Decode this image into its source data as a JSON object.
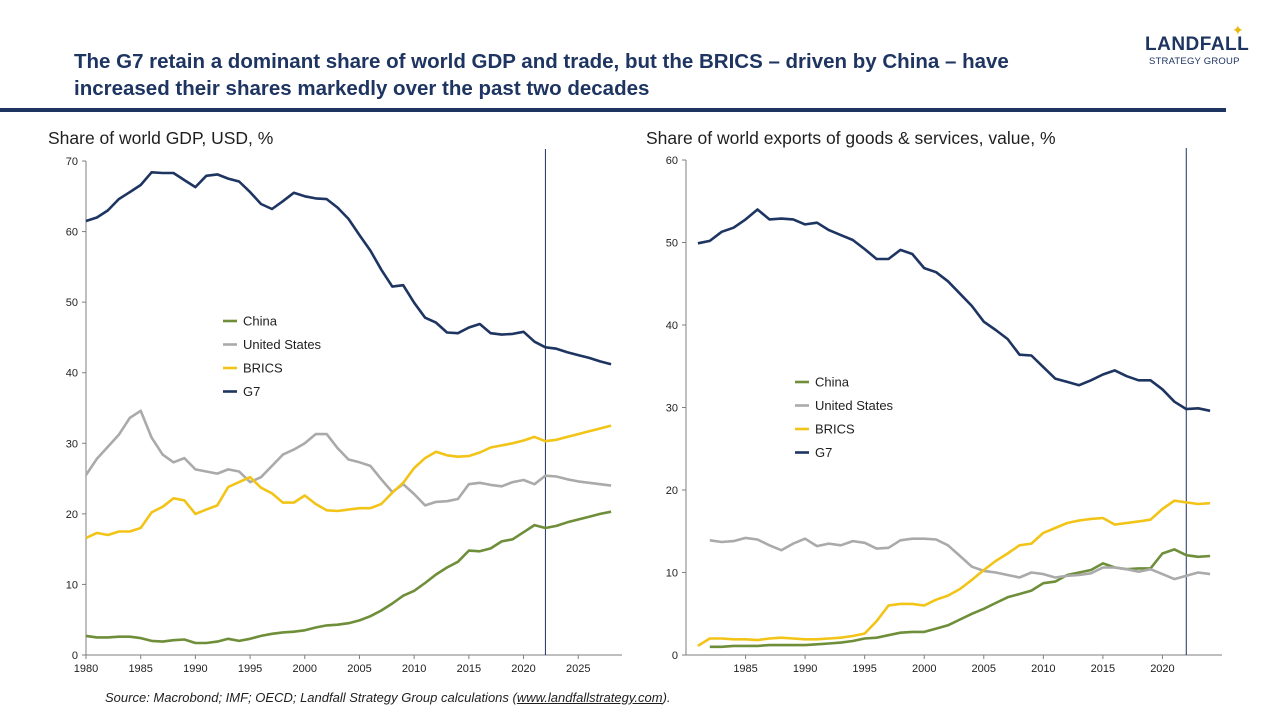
{
  "headline": "The G7 retain a dominant share of world GDP and trade, but the BRICS – driven by China – have increased their shares markedly over the past two decades",
  "logo": {
    "name": "LANDFALL",
    "sub": "STRATEGY GROUP"
  },
  "source": {
    "prefix": "Source: Macrobond; IMF; OECD; Landfall Strategy Group calculations (",
    "link": "www.landfallstrategy.com",
    "suffix": ")."
  },
  "colors": {
    "China": "#6f8e3a",
    "United States": "#aaaaaa",
    "BRICS": "#f2c418",
    "G7": "#1e3461"
  },
  "chart_data": [
    {
      "type": "line",
      "title": "Share of world GDP, USD, %",
      "xlim": [
        1980,
        2029
      ],
      "ylim": [
        0,
        70
      ],
      "xticks": [
        1980,
        1985,
        1990,
        1995,
        2000,
        2005,
        2010,
        2015,
        2020,
        2025
      ],
      "yticks": [
        0,
        10,
        20,
        30,
        40,
        50,
        60,
        70
      ],
      "vline": 2022,
      "legend": [
        "China",
        "United States",
        "BRICS",
        "G7"
      ],
      "series": [
        {
          "name": "China",
          "x": [
            1980,
            1981,
            1982,
            1983,
            1984,
            1985,
            1986,
            1987,
            1988,
            1989,
            1990,
            1991,
            1992,
            1993,
            1994,
            1995,
            1996,
            1997,
            1998,
            1999,
            2000,
            2001,
            2002,
            2003,
            2004,
            2005,
            2006,
            2007,
            2008,
            2009,
            2010,
            2011,
            2012,
            2013,
            2014,
            2015,
            2016,
            2017,
            2018,
            2019,
            2020,
            2021,
            2022,
            2023,
            2024,
            2025,
            2026,
            2027,
            2028
          ],
          "values": [
            2.7,
            2.5,
            2.5,
            2.6,
            2.6,
            2.4,
            2.0,
            1.9,
            2.1,
            2.2,
            1.7,
            1.7,
            1.9,
            2.3,
            2.0,
            2.3,
            2.7,
            3.0,
            3.2,
            3.3,
            3.5,
            3.9,
            4.2,
            4.3,
            4.5,
            4.9,
            5.5,
            6.3,
            7.3,
            8.4,
            9.1,
            10.2,
            11.4,
            12.4,
            13.2,
            14.8,
            14.7,
            15.1,
            16.1,
            16.4,
            17.4,
            18.4,
            18.0,
            18.3,
            18.8,
            19.2,
            19.6,
            20.0,
            20.3
          ]
        },
        {
          "name": "United States",
          "x": [
            1980,
            1981,
            1982,
            1983,
            1984,
            1985,
            1986,
            1987,
            1988,
            1989,
            1990,
            1991,
            1992,
            1993,
            1994,
            1995,
            1996,
            1997,
            1998,
            1999,
            2000,
            2001,
            2002,
            2003,
            2004,
            2005,
            2006,
            2007,
            2008,
            2009,
            2010,
            2011,
            2012,
            2013,
            2014,
            2015,
            2016,
            2017,
            2018,
            2019,
            2020,
            2021,
            2022,
            2023,
            2024,
            2025,
            2026,
            2027,
            2028
          ],
          "values": [
            25.5,
            27.8,
            29.5,
            31.2,
            33.6,
            34.6,
            30.8,
            28.4,
            27.3,
            27.9,
            26.3,
            26.0,
            25.7,
            26.3,
            26.0,
            24.5,
            25.2,
            26.8,
            28.4,
            29.1,
            30.0,
            31.3,
            31.3,
            29.3,
            27.7,
            27.3,
            26.8,
            24.9,
            23.1,
            24.2,
            22.8,
            21.2,
            21.7,
            21.8,
            22.1,
            24.2,
            24.4,
            24.1,
            23.9,
            24.5,
            24.8,
            24.2,
            25.4,
            25.3,
            24.9,
            24.6,
            24.4,
            24.2,
            24.0
          ]
        },
        {
          "name": "BRICS",
          "x": [
            1980,
            1981,
            1982,
            1983,
            1984,
            1985,
            1986,
            1987,
            1988,
            1989,
            1990,
            1991,
            1992,
            1993,
            1994,
            1995,
            1996,
            1997,
            1998,
            1999,
            2000,
            2001,
            2002,
            2003,
            2004,
            2005,
            2006,
            2007,
            2008,
            2009,
            2010,
            2011,
            2012,
            2013,
            2014,
            2015,
            2016,
            2017,
            2018,
            2019,
            2020,
            2021,
            2022,
            2023,
            2024,
            2025,
            2026,
            2027,
            2028
          ],
          "values": [
            16.6,
            17.3,
            17.0,
            17.5,
            17.5,
            18.0,
            20.2,
            21.0,
            22.2,
            21.9,
            20.0,
            20.6,
            21.2,
            23.8,
            24.5,
            25.2,
            23.7,
            22.9,
            21.6,
            21.6,
            22.6,
            21.4,
            20.5,
            20.4,
            20.6,
            20.8,
            20.8,
            21.4,
            23.0,
            24.4,
            26.5,
            27.9,
            28.8,
            28.3,
            28.1,
            28.2,
            28.7,
            29.4,
            29.7,
            30.0,
            30.4,
            30.9,
            30.3,
            30.5,
            30.9,
            31.3,
            31.7,
            32.1,
            32.5
          ]
        },
        {
          "name": "G7",
          "x": [
            1980,
            1981,
            1982,
            1983,
            1984,
            1985,
            1986,
            1987,
            1988,
            1989,
            1990,
            1991,
            1992,
            1993,
            1994,
            1995,
            1996,
            1997,
            1998,
            1999,
            2000,
            2001,
            2002,
            2003,
            2004,
            2005,
            2006,
            2007,
            2008,
            2009,
            2010,
            2011,
            2012,
            2013,
            2014,
            2015,
            2016,
            2017,
            2018,
            2019,
            2020,
            2021,
            2022,
            2023,
            2024,
            2025,
            2026,
            2027,
            2028
          ],
          "values": [
            61.5,
            62.0,
            63.0,
            64.6,
            65.6,
            66.6,
            68.4,
            68.3,
            68.3,
            67.3,
            66.3,
            67.9,
            68.1,
            67.5,
            67.1,
            65.6,
            63.9,
            63.2,
            64.3,
            65.5,
            65.0,
            64.7,
            64.6,
            63.4,
            61.8,
            59.5,
            57.3,
            54.6,
            52.2,
            52.4,
            49.9,
            47.8,
            47.1,
            45.7,
            45.6,
            46.4,
            46.9,
            45.6,
            45.4,
            45.5,
            45.8,
            44.4,
            43.6,
            43.4,
            42.9,
            42.5,
            42.1,
            41.6,
            41.2
          ]
        }
      ]
    },
    {
      "type": "line",
      "title": "Share of world exports of goods & services, value, %",
      "xlim": [
        1980,
        2025
      ],
      "ylim": [
        0,
        60
      ],
      "xticks": [
        1985,
        1990,
        1995,
        2000,
        2005,
        2010,
        2015,
        2020
      ],
      "yticks": [
        0,
        10,
        20,
        30,
        40,
        50,
        60
      ],
      "vline": 2022,
      "legend": [
        "China",
        "United States",
        "BRICS",
        "G7"
      ],
      "series": [
        {
          "name": "China",
          "x": [
            1982,
            1983,
            1984,
            1985,
            1986,
            1987,
            1988,
            1989,
            1990,
            1991,
            1992,
            1993,
            1994,
            1995,
            1996,
            1997,
            1998,
            1999,
            2000,
            2001,
            2002,
            2003,
            2004,
            2005,
            2006,
            2007,
            2008,
            2009,
            2010,
            2011,
            2012,
            2013,
            2014,
            2015,
            2016,
            2017,
            2018,
            2019,
            2020,
            2021,
            2022,
            2023,
            2024
          ],
          "values": [
            1.0,
            1.0,
            1.1,
            1.1,
            1.1,
            1.2,
            1.2,
            1.2,
            1.2,
            1.3,
            1.4,
            1.5,
            1.7,
            2.0,
            2.1,
            2.4,
            2.7,
            2.8,
            2.8,
            3.2,
            3.6,
            4.3,
            5.0,
            5.6,
            6.3,
            7.0,
            7.4,
            7.8,
            8.7,
            8.9,
            9.7,
            10.0,
            10.3,
            11.1,
            10.6,
            10.4,
            10.5,
            10.5,
            12.3,
            12.8,
            12.1,
            11.9,
            12.0
          ]
        },
        {
          "name": "United States",
          "x": [
            1982,
            1983,
            1984,
            1985,
            1986,
            1987,
            1988,
            1989,
            1990,
            1991,
            1992,
            1993,
            1994,
            1995,
            1996,
            1997,
            1998,
            1999,
            2000,
            2001,
            2002,
            2003,
            2004,
            2005,
            2006,
            2007,
            2008,
            2009,
            2010,
            2011,
            2012,
            2013,
            2014,
            2015,
            2016,
            2017,
            2018,
            2019,
            2020,
            2021,
            2022,
            2023,
            2024
          ],
          "values": [
            13.9,
            13.7,
            13.8,
            14.2,
            14.0,
            13.3,
            12.7,
            13.5,
            14.1,
            13.2,
            13.5,
            13.3,
            13.8,
            13.6,
            12.9,
            13.0,
            13.9,
            14.1,
            14.1,
            14.0,
            13.3,
            12.0,
            10.7,
            10.2,
            10.0,
            9.7,
            9.4,
            10.0,
            9.8,
            9.4,
            9.6,
            9.7,
            9.9,
            10.6,
            10.6,
            10.4,
            10.1,
            10.4,
            9.8,
            9.2,
            9.6,
            10.0,
            9.8
          ]
        },
        {
          "name": "BRICS",
          "x": [
            1981,
            1982,
            1983,
            1984,
            1985,
            1986,
            1987,
            1988,
            1989,
            1990,
            1991,
            1992,
            1993,
            1994,
            1995,
            1996,
            1997,
            1998,
            1999,
            2000,
            2001,
            2002,
            2003,
            2004,
            2005,
            2006,
            2007,
            2008,
            2009,
            2010,
            2011,
            2012,
            2013,
            2014,
            2015,
            2016,
            2017,
            2018,
            2019,
            2020,
            2021,
            2022,
            2023,
            2024
          ],
          "values": [
            1.1,
            2.0,
            2.0,
            1.9,
            1.9,
            1.8,
            2.0,
            2.1,
            2.0,
            1.9,
            1.9,
            2.0,
            2.1,
            2.3,
            2.6,
            4.1,
            6.0,
            6.2,
            6.2,
            6.0,
            6.7,
            7.2,
            8.0,
            9.1,
            10.3,
            11.4,
            12.3,
            13.3,
            13.5,
            14.8,
            15.4,
            16.0,
            16.3,
            16.5,
            16.6,
            15.8,
            16.0,
            16.2,
            16.4,
            17.7,
            18.7,
            18.5,
            18.3,
            18.4
          ]
        },
        {
          "name": "G7",
          "x": [
            1981,
            1982,
            1983,
            1984,
            1985,
            1986,
            1987,
            1988,
            1989,
            1990,
            1991,
            1992,
            1993,
            1994,
            1995,
            1996,
            1997,
            1998,
            1999,
            2000,
            2001,
            2002,
            2003,
            2004,
            2005,
            2006,
            2007,
            2008,
            2009,
            2010,
            2011,
            2012,
            2013,
            2014,
            2015,
            2016,
            2017,
            2018,
            2019,
            2020,
            2021,
            2022,
            2023,
            2024
          ],
          "values": [
            49.9,
            50.2,
            51.3,
            51.8,
            52.8,
            54.0,
            52.8,
            52.9,
            52.8,
            52.2,
            52.4,
            51.5,
            50.9,
            50.3,
            49.2,
            48.0,
            48.0,
            49.1,
            48.6,
            46.9,
            46.4,
            45.3,
            43.8,
            42.3,
            40.4,
            39.4,
            38.3,
            36.4,
            36.3,
            34.9,
            33.5,
            33.1,
            32.7,
            33.3,
            34.0,
            34.5,
            33.8,
            33.3,
            33.3,
            32.2,
            30.7,
            29.8,
            29.9,
            29.6
          ]
        }
      ]
    }
  ]
}
